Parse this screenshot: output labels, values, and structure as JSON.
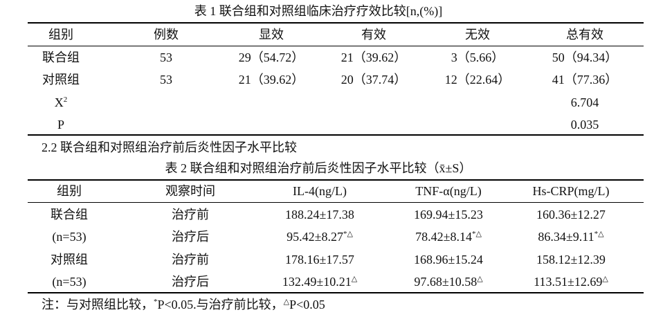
{
  "table1": {
    "title": "表 1   联合组和对照组临床治疗疗效比较[n,(%)]",
    "header": [
      "组别",
      "例数",
      "显效",
      "有效",
      "无效",
      "总有效"
    ],
    "rows": [
      [
        "联合组",
        "53",
        "29（54.72）",
        "21（39.62）",
        "3（5.66）",
        "50（94.34）"
      ],
      [
        "对照组",
        "53",
        "21（39.62）",
        "20（37.74）",
        "12（22.64）",
        "41（77.36）"
      ],
      [
        {
          "text": "X",
          "sup": "2"
        },
        null,
        null,
        null,
        null,
        "6.704"
      ],
      [
        "P",
        null,
        null,
        null,
        null,
        "0.035"
      ]
    ]
  },
  "section_heading": "2.2 联合组和对照组治疗前后炎性因子水平比较",
  "table2": {
    "title": "表 2   联合组和对照组治疗前后炎性因子水平比较（x̄±S）",
    "header": [
      "组别",
      "观察时间",
      "IL-4(ng/L)",
      "TNF-α(ng/L)",
      "Hs-CRP(mg/L)"
    ],
    "rows": [
      [
        "联合组",
        "治疗前",
        "188.24±17.38",
        "169.94±15.23",
        "160.36±12.27"
      ],
      [
        "(n=53)",
        "治疗后",
        {
          "text": "95.42±8.27",
          "sup": "*△"
        },
        {
          "text": "78.42±8.14",
          "sup": "*△"
        },
        {
          "text": "86.34±9.11",
          "sup": "*△"
        }
      ],
      [
        "对照组",
        "治疗前",
        "178.16±17.57",
        "168.96±15.24",
        "158.12±12.39"
      ],
      [
        "(n=53)",
        "治疗后",
        {
          "text": "132.49±10.21",
          "sup": "△"
        },
        {
          "text": "97.68±10.58",
          "sup": "△"
        },
        {
          "text": "113.51±12.69",
          "sup": "△"
        }
      ]
    ]
  },
  "note": [
    {
      "text": "注：与对照组比较，"
    },
    {
      "sup": "*"
    },
    {
      "text": "P<0.05.与治疗前比较，"
    },
    {
      "sup": "△"
    },
    {
      "text": "P<0.05"
    }
  ]
}
